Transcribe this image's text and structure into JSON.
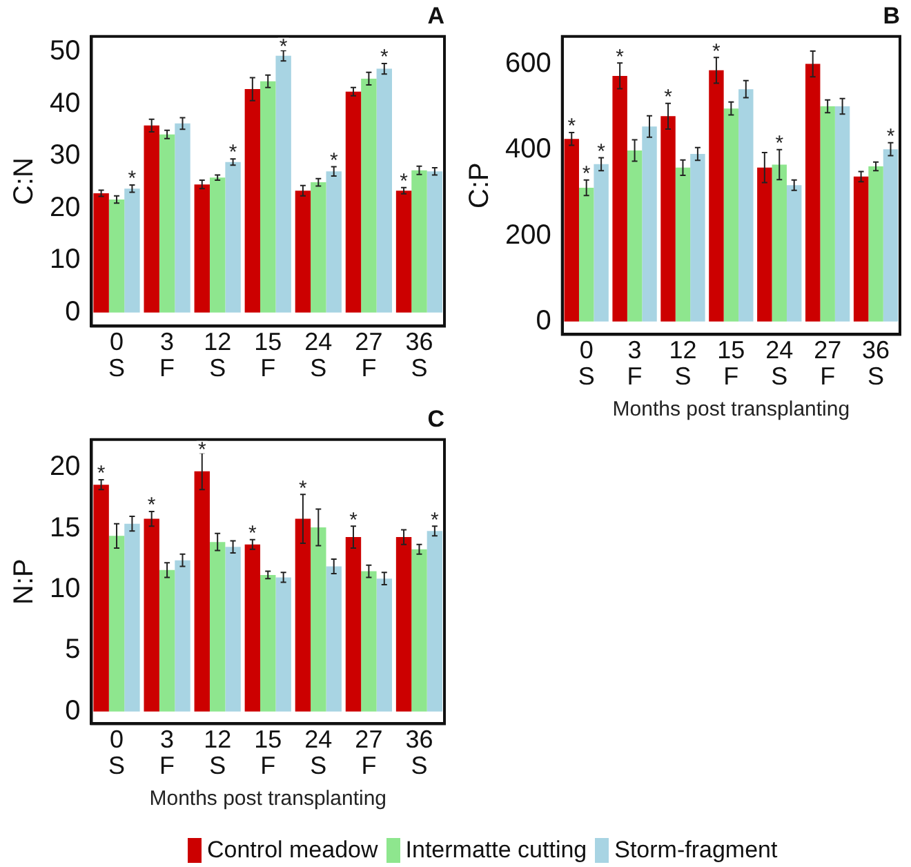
{
  "chart_data": [
    {
      "type": "bar",
      "title": "A",
      "ylabel": "C:N",
      "categories": [
        "0\nS",
        "3\nF",
        "12\nS",
        "15\nF",
        "24\nS",
        "27\nF",
        "36\nS"
      ],
      "ylim": [
        -2.6,
        53
      ],
      "yticks": [
        0,
        10,
        20,
        30,
        40,
        50
      ],
      "grid": false,
      "series": [
        {
          "color": "#cc0000",
          "values": [
            22.9,
            35.9,
            24.6,
            42.9,
            23.4,
            42.4,
            23.4
          ],
          "errors": [
            0.6,
            1.2,
            0.8,
            2.2,
            1.0,
            0.8,
            0.6
          ],
          "value_labels": [
            null,
            null,
            null,
            null,
            null,
            null,
            "*"
          ]
        },
        {
          "color": "#8ee68e",
          "values": [
            21.7,
            34.2,
            25.9,
            44.4,
            25.0,
            44.9,
            27.3
          ],
          "errors": [
            0.7,
            0.8,
            0.5,
            1.2,
            0.7,
            1.2,
            0.8
          ]
        },
        {
          "color": "#a8d4e3",
          "values": [
            23.8,
            36.3,
            28.9,
            49.3,
            27.1,
            46.8,
            27.1
          ],
          "errors": [
            0.7,
            1.1,
            0.6,
            1.0,
            0.9,
            1.0,
            0.7
          ],
          "value_labels": [
            "*",
            null,
            "*",
            "*",
            "*",
            "*",
            null
          ]
        }
      ]
    },
    {
      "type": "bar",
      "title": "B",
      "ylabel": "C:P",
      "xlabel": "Months post transplanting",
      "categories": [
        "0\nS",
        "3\nF",
        "12\nS",
        "15\nF",
        "24\nS",
        "27\nF",
        "36\nS"
      ],
      "ylim": [
        -30,
        665
      ],
      "yticks": [
        0,
        200,
        400,
        600
      ],
      "grid": false,
      "series": [
        {
          "color": "#cc0000",
          "values": [
            426,
            573,
            479,
            586,
            359,
            601,
            338
          ],
          "errors": [
            15,
            30,
            30,
            30,
            35,
            30,
            12
          ],
          "value_labels": [
            "*",
            "*",
            "*",
            "*",
            null,
            null,
            null
          ]
        },
        {
          "color": "#8ee68e",
          "values": [
            312,
            399,
            359,
            497,
            366,
            502,
            362
          ],
          "errors": [
            18,
            25,
            18,
            15,
            35,
            15,
            10
          ],
          "value_labels": [
            "*",
            null,
            null,
            null,
            "*",
            null,
            null
          ]
        },
        {
          "color": "#a8d4e3",
          "values": [
            367,
            455,
            391,
            542,
            318,
            502,
            402
          ],
          "errors": [
            15,
            25,
            15,
            20,
            12,
            18,
            15
          ],
          "value_labels": [
            "*",
            null,
            null,
            null,
            null,
            null,
            "*"
          ]
        }
      ]
    },
    {
      "type": "bar",
      "title": "C",
      "ylabel": "N:P",
      "xlabel": "Months post transplanting",
      "categories": [
        "0\nS",
        "3\nF",
        "12\nS",
        "15\nF",
        "24\nS",
        "27\nF",
        "36\nS"
      ],
      "ylim": [
        -1,
        22.3
      ],
      "yticks": [
        0,
        5,
        10,
        15,
        20
      ],
      "grid": false,
      "legend": "bottom",
      "series": [
        {
          "name": "Control meadow",
          "color": "#cc0000",
          "values": [
            18.6,
            15.8,
            19.7,
            13.7,
            15.8,
            14.3,
            14.3
          ],
          "errors": [
            0.4,
            0.6,
            1.5,
            0.4,
            2.0,
            0.9,
            0.6
          ],
          "value_labels": [
            "*",
            "*",
            "*",
            "*",
            "*",
            "*",
            null
          ]
        },
        {
          "name": "Intermatte cutting",
          "color": "#8ee68e",
          "values": [
            14.4,
            11.6,
            13.9,
            11.2,
            15.1,
            11.5,
            13.3
          ],
          "errors": [
            1.0,
            0.6,
            0.7,
            0.3,
            1.5,
            0.5,
            0.4
          ]
        },
        {
          "name": "Storm-fragment",
          "color": "#a8d4e3",
          "values": [
            15.4,
            12.4,
            13.5,
            11.0,
            11.9,
            10.9,
            14.8
          ],
          "errors": [
            0.6,
            0.5,
            0.5,
            0.4,
            0.6,
            0.5,
            0.4
          ],
          "value_labels": [
            null,
            null,
            null,
            null,
            null,
            null,
            "*"
          ]
        }
      ]
    }
  ]
}
